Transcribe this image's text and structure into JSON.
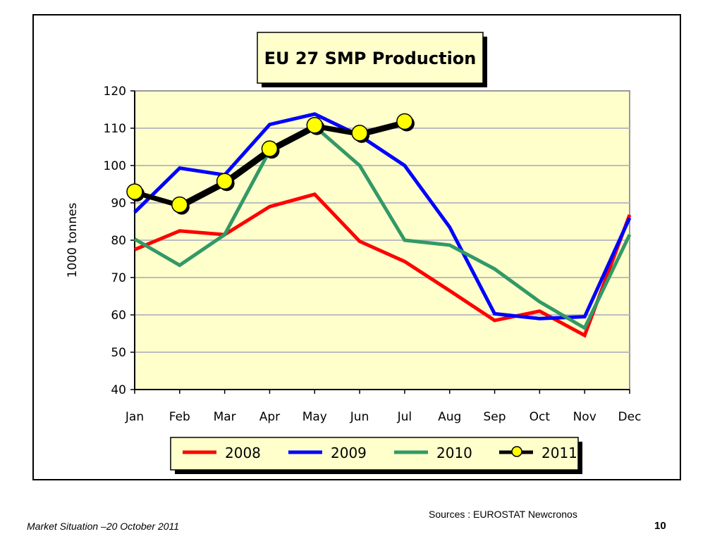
{
  "footer": {
    "left": "Market Situation –20 October 2011",
    "source": "Sources : EUROSTAT Newcronos",
    "page": "10"
  },
  "chart_data": {
    "type": "line",
    "title": "EU 27 SMP Production",
    "xlabel": "",
    "ylabel": "1000 tonnes",
    "ylim": [
      40,
      120
    ],
    "yticks": [
      40,
      50,
      60,
      70,
      80,
      90,
      100,
      110,
      120
    ],
    "grid": true,
    "legend_position": "bottom",
    "plot_background": "#FFFFCC",
    "categories": [
      "Jan",
      "Feb",
      "Mar",
      "Apr",
      "May",
      "Jun",
      "Jul",
      "Aug",
      "Sep",
      "Oct",
      "Nov",
      "Dec"
    ],
    "series": [
      {
        "name": "2008",
        "color": "#FF0000",
        "marker": false,
        "values": [
          77.5,
          82.5,
          81.5,
          89.0,
          92.3,
          79.7,
          74.3,
          66.5,
          58.5,
          61.0,
          54.5,
          86.8
        ]
      },
      {
        "name": "2009",
        "color": "#0000FF",
        "marker": false,
        "values": [
          87.5,
          99.3,
          97.5,
          111.0,
          113.8,
          108.0,
          100.0,
          83.5,
          60.3,
          59.0,
          59.5,
          86.0
        ]
      },
      {
        "name": "2010",
        "color": "#339966",
        "marker": false,
        "values": [
          80.3,
          73.3,
          81.5,
          104.0,
          110.5,
          100.0,
          80.0,
          78.7,
          72.3,
          63.5,
          56.5,
          81.5
        ]
      },
      {
        "name": "2011",
        "color": "#000000",
        "marker": true,
        "marker_color": "#FFFF00",
        "values": [
          93.0,
          89.5,
          95.8,
          104.5,
          110.8,
          108.7,
          111.8,
          null,
          null,
          null,
          null,
          null
        ]
      }
    ]
  }
}
